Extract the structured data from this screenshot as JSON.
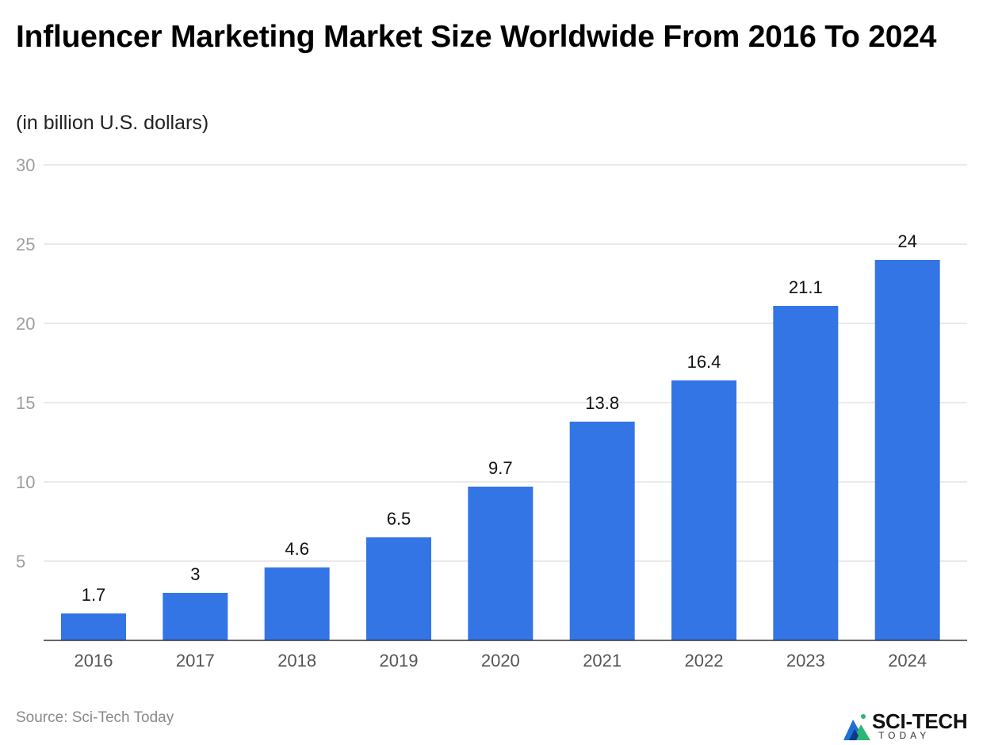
{
  "title": "Influencer Marketing Market Size Worldwide From 2016 To 2024",
  "subtitle": "(in billion U.S. dollars)",
  "source": "Source: Sci-Tech Today",
  "logo": {
    "main": "SCI-TECH",
    "sub": "TODAY"
  },
  "colors": {
    "bar": "#3475e6",
    "grid": "#dddddd",
    "axis": "#333333"
  },
  "chart_data": {
    "type": "bar",
    "title": "Influencer Marketing Market Size Worldwide From 2016 To 2024",
    "subtitle": "(in billion U.S. dollars)",
    "xlabel": "",
    "ylabel": "",
    "categories": [
      "2016",
      "2017",
      "2018",
      "2019",
      "2020",
      "2021",
      "2022",
      "2023",
      "2024"
    ],
    "values": [
      1.7,
      3,
      4.6,
      6.5,
      9.7,
      13.8,
      16.4,
      21.1,
      24
    ],
    "data_labels": [
      "1.7",
      "3",
      "4.6",
      "6.5",
      "9.7",
      "13.8",
      "16.4",
      "21.1",
      "24"
    ],
    "ylim": [
      0,
      30
    ],
    "yticks": [
      5,
      10,
      15,
      20,
      25,
      30
    ],
    "grid": true,
    "legend": "none"
  }
}
